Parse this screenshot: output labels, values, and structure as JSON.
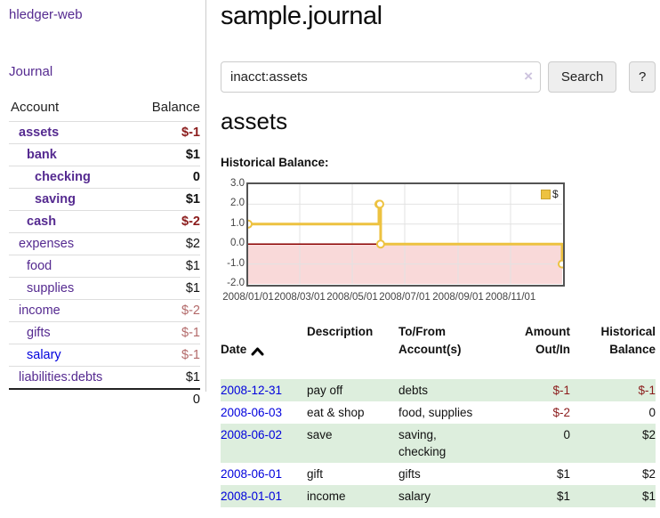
{
  "app": {
    "brand": "hledger-web",
    "nav": {
      "journal": "Journal"
    }
  },
  "sidebar": {
    "header": {
      "account": "Account",
      "balance": "Balance"
    },
    "accounts": [
      {
        "name": "assets",
        "balance": "$-1"
      },
      {
        "name": "bank",
        "balance": "$1"
      },
      {
        "name": "checking",
        "balance": "0"
      },
      {
        "name": "saving",
        "balance": "$1"
      },
      {
        "name": "cash",
        "balance": "$-2"
      },
      {
        "name": "expenses",
        "balance": "$2"
      },
      {
        "name": "food",
        "balance": "$1"
      },
      {
        "name": "supplies",
        "balance": "$1"
      },
      {
        "name": "income",
        "balance": "$-2"
      },
      {
        "name": "gifts",
        "balance": "$-1"
      },
      {
        "name": "salary",
        "balance": "$-1"
      },
      {
        "name": "liabilities:debts",
        "balance": "$1"
      }
    ],
    "total": "0"
  },
  "main": {
    "title": "sample.journal",
    "search": {
      "value": "inacct:assets",
      "clear": "×",
      "button": "Search",
      "help": "?"
    },
    "account_heading": "assets",
    "chart_label": "Historical Balance:"
  },
  "register": {
    "headers": {
      "date": "Date",
      "description": "Description",
      "accounts": "To/From\nAccount(s)",
      "amount": "Amount\nOut/In",
      "balance": "Historical\nBalance"
    },
    "rows": [
      {
        "date": "2008-12-31",
        "description": "pay off",
        "accounts": "debts",
        "amount": "$-1",
        "balance": "$-1"
      },
      {
        "date": "2008-06-03",
        "description": "eat & shop",
        "accounts": "food, supplies",
        "amount": "$-2",
        "balance": "0"
      },
      {
        "date": "2008-06-02",
        "description": "save",
        "accounts": "saving,\nchecking",
        "amount": "0",
        "balance": "$2"
      },
      {
        "date": "2008-06-01",
        "description": "gift",
        "accounts": "gifts",
        "amount": "$1",
        "balance": "$2"
      },
      {
        "date": "2008-01-01",
        "description": "income",
        "accounts": "salary",
        "amount": "$1",
        "balance": "$1"
      }
    ]
  },
  "chart_data": {
    "type": "line",
    "title": "Historical Balance",
    "legend": "$",
    "legend_position": "top-right",
    "grid": true,
    "series": [
      {
        "name": "$",
        "color": "#edc240",
        "steps": true,
        "x_dates": [
          "2008-01-01",
          "2008-06-01",
          "2008-06-02",
          "2008-06-03",
          "2008-12-31"
        ],
        "x_days": [
          0,
          152,
          153,
          154,
          365
        ],
        "values": [
          1,
          2,
          2,
          0,
          -1
        ]
      }
    ],
    "xlim_days": [
      0,
      365
    ],
    "ylim": [
      -2,
      3
    ],
    "yticks": [
      "3.0",
      "2.0",
      "1.0",
      "0.0",
      "-1.0",
      "-2.0"
    ],
    "xticks": [
      {
        "label": "2008/01/01",
        "day": 0
      },
      {
        "label": "2008/03/01",
        "day": 60
      },
      {
        "label": "2008/05/01",
        "day": 121
      },
      {
        "label": "2008/07/01",
        "day": 182
      },
      {
        "label": "2008/09/01",
        "day": 244
      },
      {
        "label": "2008/11/01",
        "day": 305
      }
    ],
    "negative_fill": "#f9d9d9",
    "zero_line_color": "#8b0000",
    "colors": {
      "line": "#edc240",
      "border": "#545454",
      "gridline": "#e2e2e2"
    }
  }
}
